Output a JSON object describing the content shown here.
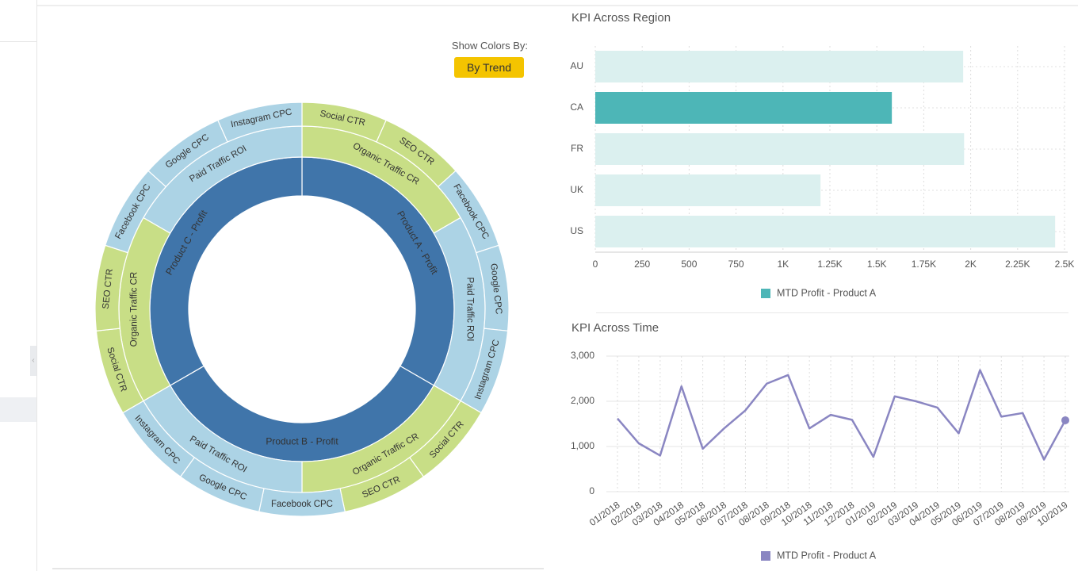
{
  "colors": {
    "dark_blue": "#4075aa",
    "light_blue": "#acd3e5",
    "green": "#c8de86",
    "teal": "#4db6b7",
    "teal_light": "#dbf0ef",
    "purple": "#8a86c2",
    "button_yellow": "#f4c400"
  },
  "controls": {
    "show_colors_label": "Show Colors By:",
    "trend_button": "By Trend"
  },
  "sunburst": {
    "inner": [
      {
        "label": "Product A - Profit",
        "color": "dark_blue"
      },
      {
        "label": "Product B - Profit",
        "color": "dark_blue"
      },
      {
        "label": "Product C - Profit",
        "color": "dark_blue"
      }
    ],
    "middle": [
      {
        "label": "Organic Traffic CR",
        "color": "green"
      },
      {
        "label": "Paid Traffic ROI",
        "color": "light_blue"
      },
      {
        "label": "Organic Traffic CR",
        "color": "green"
      },
      {
        "label": "Paid Traffic ROI",
        "color": "light_blue"
      },
      {
        "label": "Organic Traffic CR",
        "color": "green"
      },
      {
        "label": "Paid Traffic ROI",
        "color": "light_blue"
      }
    ],
    "outer": [
      {
        "label": "Social CTR",
        "color": "green"
      },
      {
        "label": "SEO CTR",
        "color": "green"
      },
      {
        "label": "Facebook CPC",
        "color": "light_blue"
      },
      {
        "label": "Google CPC",
        "color": "light_blue"
      },
      {
        "label": "Instagram CPC",
        "color": "light_blue"
      },
      {
        "label": "Social CTR",
        "color": "green"
      },
      {
        "label": "SEO CTR",
        "color": "green"
      },
      {
        "label": "Facebook CPC",
        "color": "light_blue"
      },
      {
        "label": "Google CPC",
        "color": "light_blue"
      },
      {
        "label": "Instagram CPC",
        "color": "light_blue"
      },
      {
        "label": "Social CTR",
        "color": "green"
      },
      {
        "label": "SEO CTR",
        "color": "green"
      },
      {
        "label": "Facebook CPC",
        "color": "light_blue"
      },
      {
        "label": "Google CPC",
        "color": "light_blue"
      },
      {
        "label": "Instagram CPC",
        "color": "light_blue"
      }
    ]
  },
  "chart_data": [
    {
      "type": "bar",
      "orientation": "horizontal",
      "title": "KPI Across Region",
      "categories": [
        "AU",
        "CA",
        "FR",
        "UK",
        "US"
      ],
      "series": [
        {
          "name": "MTD Profit - Product A",
          "values": [
            1960,
            1580,
            1965,
            1200,
            2450
          ]
        }
      ],
      "highlighted_category": "CA",
      "xlim": [
        0,
        2500
      ],
      "x_ticks": [
        "0",
        "250",
        "500",
        "750",
        "1K",
        "1.25K",
        "1.5K",
        "1.75K",
        "2K",
        "2.25K",
        "2.5K"
      ],
      "grid": true,
      "legend": "bottom"
    },
    {
      "type": "line",
      "title": "KPI Across Time",
      "x": [
        "01/2018",
        "02/2018",
        "03/2018",
        "04/2018",
        "05/2018",
        "06/2018",
        "07/2018",
        "08/2018",
        "09/2018",
        "10/2018",
        "11/2018",
        "12/2018",
        "01/2019",
        "02/2019",
        "03/2019",
        "04/2019",
        "05/2019",
        "06/2019",
        "07/2019",
        "08/2019",
        "09/2019",
        "10/2019"
      ],
      "series": [
        {
          "name": "MTD Profit - Product A",
          "values": [
            1620,
            1070,
            800,
            2330,
            950,
            1400,
            1800,
            2390,
            2580,
            1400,
            1700,
            1590,
            770,
            2110,
            2000,
            1860,
            1290,
            2690,
            1660,
            1740,
            710,
            1580
          ]
        }
      ],
      "ylim": [
        0,
        3000
      ],
      "y_ticks": [
        "0",
        "1,000",
        "2,000",
        "3,000"
      ],
      "grid": true,
      "legend": "bottom"
    }
  ]
}
